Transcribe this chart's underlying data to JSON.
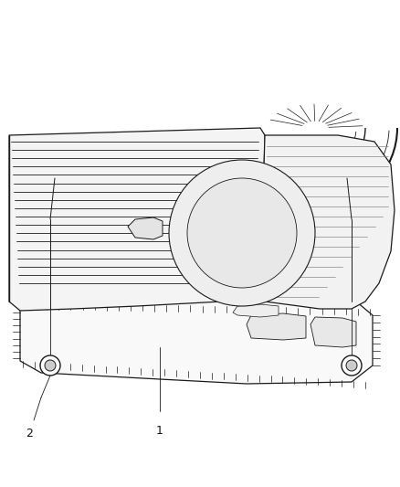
{
  "background_color": "#ffffff",
  "line_color": "#1a1a1a",
  "light_line": "#555555",
  "label_1_text": "1",
  "label_2_text": "2",
  "figsize": [
    4.38,
    5.33
  ],
  "dpi": 100
}
